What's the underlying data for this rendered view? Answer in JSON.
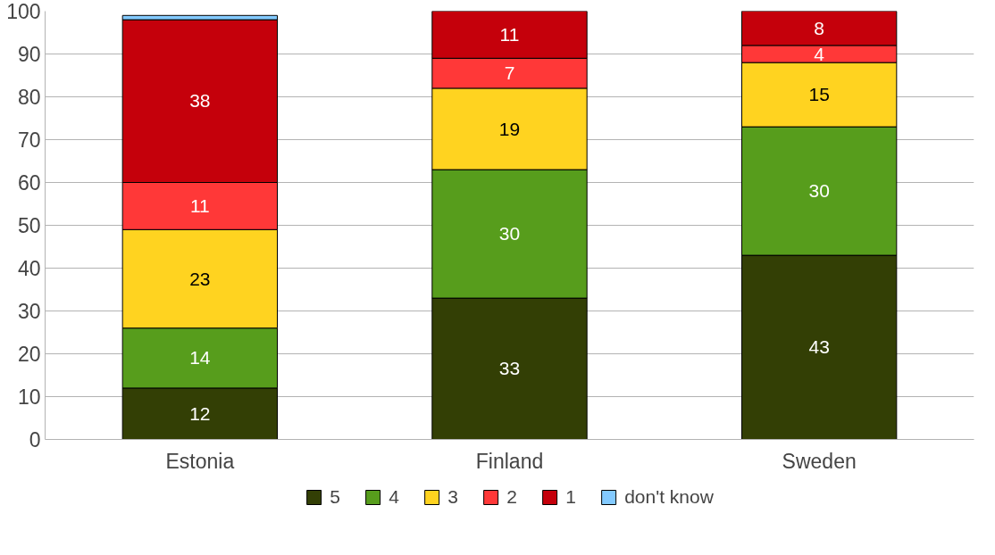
{
  "chart_data": {
    "type": "bar",
    "stacked": true,
    "categories": [
      "Estonia",
      "Finland",
      "Sweden"
    ],
    "series": [
      {
        "name": "5",
        "color": "#333f05",
        "values": [
          12,
          33,
          43
        ],
        "value_labels": [
          "12",
          "33",
          "43"
        ]
      },
      {
        "name": "4",
        "color": "#579d1c",
        "values": [
          14,
          30,
          30
        ],
        "value_labels": [
          "14",
          "30",
          "30"
        ]
      },
      {
        "name": "3",
        "color": "#ffd320",
        "values": [
          23,
          19,
          15
        ],
        "value_labels": [
          "23",
          "19",
          "15"
        ]
      },
      {
        "name": "2",
        "color": "#ff3838",
        "values": [
          11,
          7,
          4
        ],
        "value_labels": [
          "11",
          "7",
          "4"
        ]
      },
      {
        "name": "1",
        "color": "#c5000b",
        "values": [
          38,
          11,
          8
        ],
        "value_labels": [
          "38",
          "11",
          "8"
        ]
      },
      {
        "name": "don't know",
        "color": "#83caff",
        "values": [
          1,
          0,
          0
        ],
        "value_labels": [
          null,
          null,
          null
        ]
      }
    ],
    "ylim": [
      0,
      100
    ],
    "yticks": [
      0,
      10,
      20,
      30,
      40,
      50,
      60,
      70,
      80,
      90,
      100
    ],
    "grid": "y",
    "legend": "bottom"
  }
}
